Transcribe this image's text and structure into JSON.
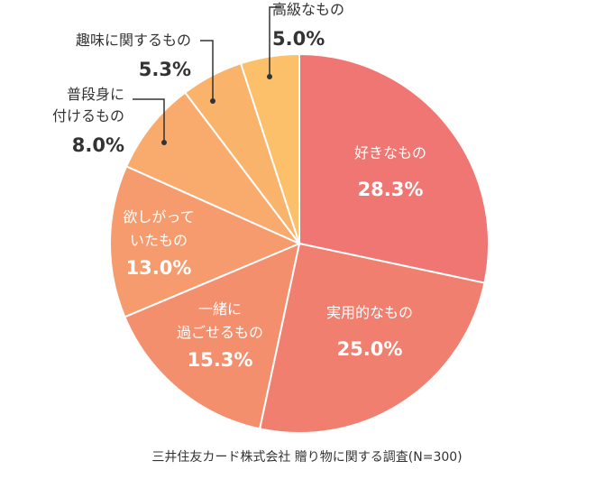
{
  "chart_data": {
    "type": "pie",
    "title": "",
    "start_angle_deg": 0,
    "direction": "clockwise",
    "slices": [
      {
        "label_lines": [
          "好きなもの"
        ],
        "value": 28.3,
        "value_label": "28.3%",
        "color": "#EF7672"
      },
      {
        "label_lines": [
          "実用的なもの"
        ],
        "value": 25.0,
        "value_label": "25.0%",
        "color": "#F07F70"
      },
      {
        "label_lines": [
          "一緒に",
          "過ごせるもの"
        ],
        "value": 15.3,
        "value_label": "15.3%",
        "color": "#F48F6E"
      },
      {
        "label_lines": [
          "欲しがって",
          "いたもの"
        ],
        "value": 13.0,
        "value_label": "13.0%",
        "color": "#F59B6E"
      },
      {
        "label_lines": [
          "普段身に",
          "付けるもの"
        ],
        "value": 8.0,
        "value_label": "8.0%",
        "color": "#F9AB6D"
      },
      {
        "label_lines": [
          "趣味に関するもの"
        ],
        "value": 5.3,
        "value_label": "5.3%",
        "color": "#FAB36B"
      },
      {
        "label_lines": [
          "高級なもの"
        ],
        "value": 5.0,
        "value_label": "5.0%",
        "color": "#FDC06A"
      }
    ]
  },
  "source": "三井住友カード株式会社 贈り物に関する調査(N=300)"
}
